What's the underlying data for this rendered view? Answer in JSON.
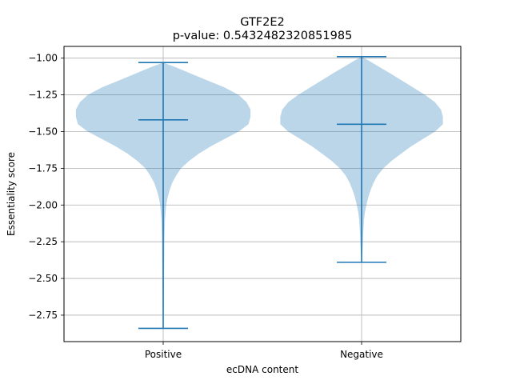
{
  "chart_data": {
    "type": "violin",
    "title": "GTF2E2",
    "subtitle": "p-value: 0.5432482320851985",
    "xlabel": "ecDNA content",
    "ylabel": "Essentiality score",
    "categories": [
      "Positive",
      "Negative"
    ],
    "ylim": [
      -2.93,
      -0.92
    ],
    "yticks": [
      -1.0,
      -1.25,
      -1.5,
      -1.75,
      -2.0,
      -2.25,
      -2.5,
      -2.75
    ],
    "ytick_labels": [
      "−1.00",
      "−1.25",
      "−1.50",
      "−1.75",
      "−2.00",
      "−2.25",
      "−2.50",
      "−2.75"
    ],
    "grid": true,
    "violins": [
      {
        "category": "Positive",
        "max": -1.03,
        "median": -1.42,
        "min": -2.84,
        "density": [
          {
            "y": -1.03,
            "w": 0.0
          },
          {
            "y": -1.06,
            "w": 0.06
          },
          {
            "y": -1.1,
            "w": 0.13
          },
          {
            "y": -1.15,
            "w": 0.22
          },
          {
            "y": -1.2,
            "w": 0.31
          },
          {
            "y": -1.25,
            "w": 0.38
          },
          {
            "y": -1.3,
            "w": 0.42
          },
          {
            "y": -1.35,
            "w": 0.44
          },
          {
            "y": -1.4,
            "w": 0.44
          },
          {
            "y": -1.45,
            "w": 0.43
          },
          {
            "y": -1.5,
            "w": 0.38
          },
          {
            "y": -1.55,
            "w": 0.31
          },
          {
            "y": -1.6,
            "w": 0.24
          },
          {
            "y": -1.65,
            "w": 0.18
          },
          {
            "y": -1.7,
            "w": 0.13
          },
          {
            "y": -1.75,
            "w": 0.09
          },
          {
            "y": -1.8,
            "w": 0.065
          },
          {
            "y": -1.85,
            "w": 0.045
          },
          {
            "y": -1.9,
            "w": 0.032
          },
          {
            "y": -1.95,
            "w": 0.022
          },
          {
            "y": -2.0,
            "w": 0.015
          },
          {
            "y": -2.1,
            "w": 0.009
          },
          {
            "y": -2.25,
            "w": 0.006
          },
          {
            "y": -2.4,
            "w": 0.005
          },
          {
            "y": -2.55,
            "w": 0.004
          },
          {
            "y": -2.7,
            "w": 0.003
          },
          {
            "y": -2.84,
            "w": 0.0
          }
        ]
      },
      {
        "category": "Negative",
        "max": -0.99,
        "median": -1.45,
        "min": -2.39,
        "density": [
          {
            "y": -0.99,
            "w": 0.0
          },
          {
            "y": -1.02,
            "w": 0.04
          },
          {
            "y": -1.06,
            "w": 0.09
          },
          {
            "y": -1.1,
            "w": 0.14
          },
          {
            "y": -1.15,
            "w": 0.2
          },
          {
            "y": -1.2,
            "w": 0.26
          },
          {
            "y": -1.25,
            "w": 0.32
          },
          {
            "y": -1.3,
            "w": 0.37
          },
          {
            "y": -1.35,
            "w": 0.4
          },
          {
            "y": -1.4,
            "w": 0.41
          },
          {
            "y": -1.45,
            "w": 0.41
          },
          {
            "y": -1.5,
            "w": 0.37
          },
          {
            "y": -1.55,
            "w": 0.31
          },
          {
            "y": -1.6,
            "w": 0.25
          },
          {
            "y": -1.65,
            "w": 0.2
          },
          {
            "y": -1.7,
            "w": 0.15
          },
          {
            "y": -1.75,
            "w": 0.11
          },
          {
            "y": -1.8,
            "w": 0.08
          },
          {
            "y": -1.85,
            "w": 0.06
          },
          {
            "y": -1.9,
            "w": 0.045
          },
          {
            "y": -1.95,
            "w": 0.033
          },
          {
            "y": -2.0,
            "w": 0.024
          },
          {
            "y": -2.05,
            "w": 0.017
          },
          {
            "y": -2.1,
            "w": 0.012
          },
          {
            "y": -2.2,
            "w": 0.008
          },
          {
            "y": -2.3,
            "w": 0.005
          },
          {
            "y": -2.39,
            "w": 0.0
          }
        ]
      }
    ],
    "colors": {
      "body": "#1f77b4",
      "line": "#1f77b4",
      "grid": "#b0b0b0",
      "axis": "#000000"
    }
  }
}
